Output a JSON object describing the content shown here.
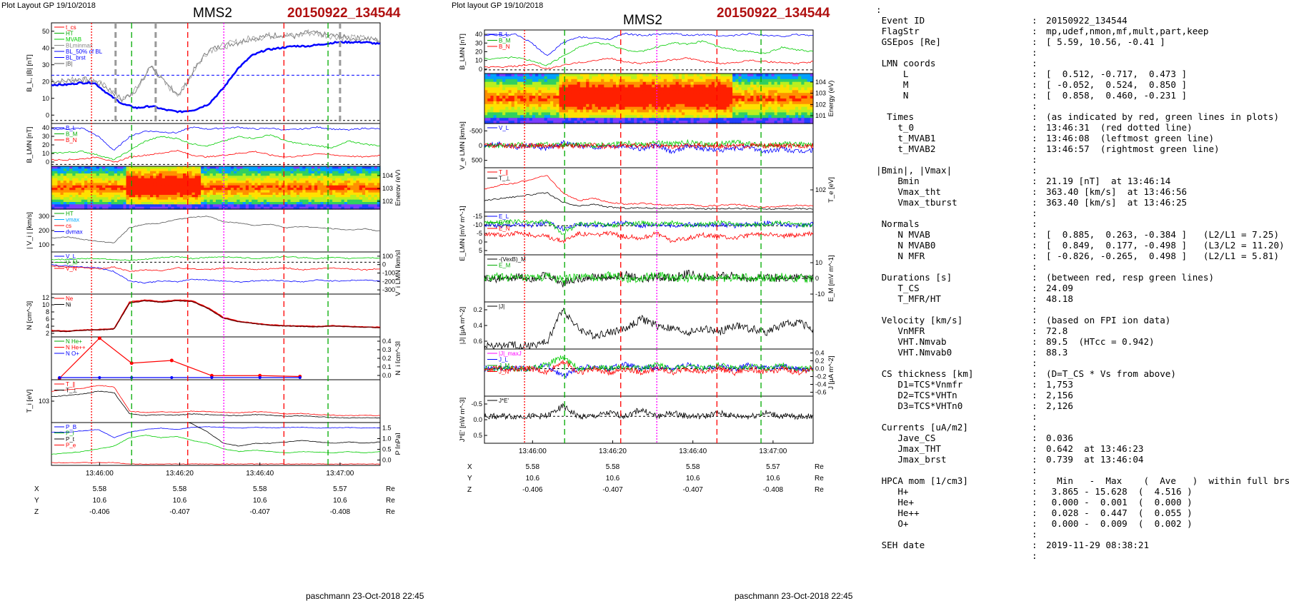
{
  "left_panel": {
    "layout_label": "Plot Layout GP 19/10/2018",
    "spacecraft": "MMS2",
    "event": "20150922_134544",
    "footer": "paschmann 23-Oct-2018 22:45",
    "time_ticks": [
      "13:46:00",
      "13:46:20",
      "13:46:40",
      "13:47:00"
    ],
    "pos_rows": [
      {
        "label": "X",
        "values": [
          "5.58",
          "5.58",
          "5.58",
          "5.57"
        ],
        "unit": "Re"
      },
      {
        "label": "Y",
        "values": [
          "10.6",
          "10.6",
          "10.6",
          "10.6"
        ],
        "unit": "Re"
      },
      {
        "label": "Z",
        "values": [
          "-0.406",
          "-0.407",
          "-0.407",
          "-0.408"
        ],
        "unit": "Re"
      }
    ],
    "panels": [
      {
        "id": "bl",
        "ylabel": "B_L, |B| [nT]",
        "yticks": [
          "0",
          "10",
          "20",
          "30",
          "40",
          "50"
        ],
        "side": "left",
        "legend": [
          {
            "t": "t_cs",
            "c": "#ff0000"
          },
          {
            "t": "HT",
            "c": "#00aa00"
          },
          {
            "t": "MVAB",
            "c": "#00cc00"
          },
          {
            "t": "BLminmax",
            "c": "#888888"
          },
          {
            "t": "BL_50% of BL",
            "c": "#0000ff"
          },
          {
            "t": "BL_brst",
            "c": "#0000ff"
          },
          {
            "t": "|B|",
            "c": "#555555"
          }
        ]
      },
      {
        "id": "blmn",
        "ylabel": "B_LMN [nT]",
        "yticks": [
          "0",
          "10",
          "20",
          "30",
          "40"
        ],
        "side": "left",
        "legend": [
          {
            "t": "B_L",
            "c": "#0000ff"
          },
          {
            "t": "B_M",
            "c": "#00aa00"
          },
          {
            "t": "B_N",
            "c": "#ff0000"
          }
        ]
      },
      {
        "id": "spec_i",
        "ylabel": "Energy (eV)",
        "yticks": [
          "10^4",
          "10^3",
          "10^2"
        ],
        "side": "right",
        "legend": []
      },
      {
        "id": "vi",
        "ylabel": "| V_i | [km/s]",
        "yticks": [
          "100",
          "200",
          "300"
        ],
        "side": "left",
        "legend": [
          {
            "t": "HT",
            "c": "#00aa00"
          },
          {
            "t": "vmax",
            "c": "#00aaff"
          },
          {
            "t": "cs",
            "c": "#ff0000"
          },
          {
            "t": "dvmax",
            "c": "#0000ff"
          }
        ]
      },
      {
        "id": "vilmn",
        "ylabel": "V_i LMN [km/s]",
        "yticks": [
          "100",
          "0",
          "-100",
          "-200",
          "-300"
        ],
        "side": "right",
        "legend": [
          {
            "t": "V_L",
            "c": "#0000ff"
          },
          {
            "t": "V_M",
            "c": "#00aa00"
          },
          {
            "t": "V_N",
            "c": "#ff0000"
          }
        ]
      },
      {
        "id": "n",
        "ylabel": "N [cm^-3]",
        "yticks": [
          "2",
          "4",
          "6",
          "8",
          "10",
          "12"
        ],
        "side": "left",
        "legend": [
          {
            "t": "Ne",
            "c": "#ff0000"
          },
          {
            "t": "Ni",
            "c": "#000000"
          }
        ]
      },
      {
        "id": "nhpca",
        "ylabel": "N_i [cm^-3]",
        "yticks": [
          "0.0",
          "0.1",
          "0.2",
          "0.3",
          "0.4"
        ],
        "side": "right",
        "legend": [
          {
            "t": "N He+",
            "c": "#00aa00"
          },
          {
            "t": "N He++",
            "c": "#ff0000"
          },
          {
            "t": "N O+",
            "c": "#0000ff"
          }
        ]
      },
      {
        "id": "ti",
        "ylabel": "T_i [eV]",
        "yticks": [
          "10^3"
        ],
        "side": "left",
        "legend": [
          {
            "t": "T_∥",
            "c": "#ff0000"
          },
          {
            "t": "T_⊥",
            "c": "#000000"
          }
        ]
      },
      {
        "id": "p",
        "ylabel": "P [nPa]",
        "yticks": [
          "0.0",
          "0.5",
          "1.0",
          "1.5"
        ],
        "side": "right",
        "legend": [
          {
            "t": "P_B",
            "c": "#0000ff"
          },
          {
            "t": "P_i",
            "c": "#00aa00"
          },
          {
            "t": "P_t",
            "c": "#000000"
          },
          {
            "t": "P_e",
            "c": "#ff0000"
          }
        ]
      }
    ]
  },
  "middle_panel": {
    "layout_label": "Plot layout GP 19/10/2018",
    "spacecraft": "MMS2",
    "event": "20150922_134544",
    "footer": "paschmann 23-Oct-2018 22:45",
    "time_ticks": [
      "13:46:00",
      "13:46:20",
      "13:46:40",
      "13:47:00"
    ],
    "pos_rows": [
      {
        "label": "X",
        "values": [
          "5.58",
          "5.58",
          "5.58",
          "5.57"
        ],
        "unit": "Re"
      },
      {
        "label": "Y",
        "values": [
          "10.6",
          "10.6",
          "10.6",
          "10.6"
        ],
        "unit": "Re"
      },
      {
        "label": "Z",
        "values": [
          "-0.406",
          "-0.407",
          "-0.407",
          "-0.408"
        ],
        "unit": "Re"
      }
    ],
    "panels": [
      {
        "id": "blmn2",
        "ylabel": "B_LMN [nT]",
        "yticks": [
          "0",
          "10",
          "20",
          "30",
          "40"
        ],
        "side": "left",
        "legend": [
          {
            "t": "B_L",
            "c": "#0000ff"
          },
          {
            "t": "B_M",
            "c": "#00aa00"
          },
          {
            "t": "B_N",
            "c": "#ff0000"
          }
        ]
      },
      {
        "id": "spec_e",
        "ylabel": "Energy (eV)",
        "yticks": [
          "10^4",
          "10^3",
          "10^2",
          "10^1"
        ],
        "side": "right",
        "legend": []
      },
      {
        "id": "ve",
        "ylabel": "V_e LMN [km/s]",
        "yticks": [
          "500",
          "0",
          "-500"
        ],
        "side": "left",
        "legend": [
          {
            "t": "V_L",
            "c": "#0000ff"
          }
        ]
      },
      {
        "id": "te",
        "ylabel": "T_e [eV]",
        "yticks": [
          "10^2"
        ],
        "side": "right",
        "legend": [
          {
            "t": "T_∥",
            "c": "#ff0000"
          },
          {
            "t": "T_⊥",
            "c": "#000000"
          }
        ]
      },
      {
        "id": "e",
        "ylabel": "E_LMN [mV m^-1]",
        "yticks": [
          "5",
          "0",
          "-5",
          "-10",
          "-15"
        ],
        "side": "left",
        "legend": [
          {
            "t": "E_L",
            "c": "#0000ff"
          },
          {
            "t": "E_M",
            "c": "#00aa00"
          },
          {
            "t": "E_N",
            "c": "#ff0000"
          }
        ]
      },
      {
        "id": "em",
        "ylabel": "E_M [mV m^-1]",
        "yticks": [
          "10",
          "0",
          "-10"
        ],
        "side": "right",
        "legend": [
          {
            "t": "-(VexB)_M",
            "c": "#000000"
          },
          {
            "t": "E_M",
            "c": "#00aa00"
          }
        ]
      },
      {
        "id": "j",
        "ylabel": "|J| [µA m^-2]",
        "yticks": [
          "0.6",
          "0.4",
          "0.2"
        ],
        "side": "left",
        "legend": [
          {
            "t": "|J|",
            "c": "#000000"
          }
        ]
      },
      {
        "id": "jlmn",
        "ylabel": "J [µA m^-2]",
        "yticks": [
          "0.4",
          "0.2",
          "0.0",
          "-0.2",
          "-0.4",
          "-0.6"
        ],
        "side": "right",
        "legend": [
          {
            "t": "|J|_maxJ",
            "c": "#ff00ff"
          },
          {
            "t": "J_L",
            "c": "#0000ff"
          },
          {
            "t": "J_M",
            "c": "#00aa00"
          },
          {
            "t": "J_N",
            "c": "#ff0000"
          }
        ]
      },
      {
        "id": "jdote",
        "ylabel": "J*E' [nW m^-3]",
        "yticks": [
          "0.5",
          "0.0",
          "-0.5"
        ],
        "side": "left",
        "legend": [
          {
            "t": "J*E'",
            "c": "#000000"
          }
        ]
      }
    ]
  },
  "info": {
    "rows": [
      {
        "lbl": ":",
        "val": ""
      },
      {
        "lbl": " Event ID",
        "val": "20150922_134544"
      },
      {
        "lbl": " FlagStr",
        "val": "mp,udef,nmon,mf,mult,part,keep"
      },
      {
        "lbl": " GSEpos [Re]",
        "val": "[ 5.59, 10.56, -0.41 ]"
      },
      {
        "lbl": "",
        "val": ""
      },
      {
        "lbl": " LMN coords",
        "val": ""
      },
      {
        "lbl": "     L",
        "val": "[  0.512, -0.717,  0.473 ]"
      },
      {
        "lbl": "     M",
        "val": "[ -0.052,  0.524,  0.850 ]"
      },
      {
        "lbl": "     N",
        "val": "[  0.858,  0.460, -0.231 ]"
      },
      {
        "lbl": "",
        "val": ""
      },
      {
        "lbl": "  Times",
        "val": "(as indicated by red, green lines in plots)"
      },
      {
        "lbl": "    t_0",
        "val": "13:46:31  (red dotted line)"
      },
      {
        "lbl": "    t_MVAB1",
        "val": "13:46:08  (leftmost green line)"
      },
      {
        "lbl": "    t_MVAB2",
        "val": "13:46:57  (rightmost green line)"
      },
      {
        "lbl": "",
        "val": ""
      },
      {
        "lbl": "|Bmin|, |Vmax|",
        "val": ""
      },
      {
        "lbl": "    Bmin",
        "val": "21.19 [nT]  at 13:46:14"
      },
      {
        "lbl": "    Vmax_tht",
        "val": "363.40 [km/s]  at 13:46:56"
      },
      {
        "lbl": "    Vmax_tburst",
        "val": "363.40 [km/s]  at 13:46:25"
      },
      {
        "lbl": "",
        "val": ""
      },
      {
        "lbl": " Normals",
        "val": ""
      },
      {
        "lbl": "    N MVAB",
        "val": "[  0.885,  0.263, -0.384 ]   (L2/L1 = 7.25)"
      },
      {
        "lbl": "    N MVAB0",
        "val": "[  0.849,  0.177, -0.498 ]   (L3/L2 = 11.20)"
      },
      {
        "lbl": "    N MFR",
        "val": "[ -0.826, -0.265,  0.498 ]   (L2/L1 = 5.81)"
      },
      {
        "lbl": "",
        "val": ""
      },
      {
        "lbl": " Durations [s]",
        "val": "(between red, resp green lines)"
      },
      {
        "lbl": "    T_CS",
        "val": "24.09"
      },
      {
        "lbl": "    T_MFR/HT",
        "val": "48.18"
      },
      {
        "lbl": "",
        "val": ""
      },
      {
        "lbl": " Velocity [km/s]",
        "val": "(based on FPI ion data)"
      },
      {
        "lbl": "    VnMFR",
        "val": "72.8"
      },
      {
        "lbl": "    VHT.Nmvab",
        "val": "89.5  (HTcc = 0.942)"
      },
      {
        "lbl": "    VHT.Nmvab0",
        "val": "88.3"
      },
      {
        "lbl": "",
        "val": ""
      },
      {
        "lbl": " CS thickness [km]",
        "val": "(D=T_CS * Vs from above)"
      },
      {
        "lbl": "    D1=TCS*Vnmfr",
        "val": "1,753"
      },
      {
        "lbl": "    D2=TCS*VHTn",
        "val": "2,156"
      },
      {
        "lbl": "    D3=TCS*VHTn0",
        "val": "2,126"
      },
      {
        "lbl": "",
        "val": ""
      },
      {
        "lbl": " Currents [uA/m2]",
        "val": ""
      },
      {
        "lbl": "    Jave_CS",
        "val": "0.036"
      },
      {
        "lbl": "    Jmax_THT",
        "val": "0.642  at 13:46:23"
      },
      {
        "lbl": "    Jmax_brst",
        "val": "0.739  at 13:46:04"
      },
      {
        "lbl": "",
        "val": ""
      },
      {
        "lbl": " HPCA mom [1/cm3]",
        "val": "  Min   -  Max    (  Ave   )  within full brst int"
      },
      {
        "lbl": "    H+",
        "val": " 3.865 - 15.628  (  4.516 )"
      },
      {
        "lbl": "    He+",
        "val": " 0.000 -  0.001  (  0.000 )"
      },
      {
        "lbl": "    He++",
        "val": " 0.028 -  0.447  (  0.055 )"
      },
      {
        "lbl": "    O+",
        "val": " 0.000 -  0.009  (  0.002 )"
      },
      {
        "lbl": "",
        "val": ""
      },
      {
        "lbl": " SEH date",
        "val": "2019-11-29 08:38:21"
      },
      {
        "lbl": "",
        "val": ""
      }
    ]
  },
  "chart_data": [
    {
      "type": "line",
      "title": "MMS2 20150922_134544",
      "xlabel": "",
      "x_ticks": [
        "13:46:00",
        "13:46:20",
        "13:46:40",
        "13:47:00"
      ],
      "x_range_s": [
        -12,
        70
      ],
      "marker_lines": [
        {
          "name": "t_cs",
          "time_s": -2,
          "color": "#ff0000",
          "style": "dotted"
        },
        {
          "name": "HT",
          "time_s": 8,
          "color": "#00aa00",
          "style": "dashed"
        },
        {
          "name": "t_cs",
          "time_s": 22,
          "color": "#ff0000",
          "style": "dashed"
        },
        {
          "name": "t_0",
          "time_s": 31,
          "color": "#ff00ff",
          "style": "dotted"
        },
        {
          "name": "t_cs",
          "time_s": 46,
          "color": "#ff0000",
          "style": "dashed"
        },
        {
          "name": "HT",
          "time_s": 57,
          "color": "#00aa00",
          "style": "dashed"
        }
      ],
      "series": [
        {
          "name": "BL_brst",
          "panel": "bl",
          "color": "#0000ff",
          "values": [
            20,
            20,
            21,
            21,
            15,
            10,
            8,
            9,
            7,
            6,
            7,
            10,
            18,
            28,
            35,
            38,
            39,
            40,
            40,
            41,
            42,
            42,
            42,
            41
          ]
        },
        {
          "name": "|B|",
          "panel": "bl",
          "color": "#666666",
          "values": [
            22,
            22,
            23,
            22,
            18,
            12,
            18,
            30,
            20,
            15,
            28,
            38,
            40,
            42,
            44,
            45,
            46,
            45,
            47,
            46,
            45,
            44,
            44,
            43
          ]
        },
        {
          "name": "Ni",
          "panel": "n",
          "color": "#6b0000",
          "values": [
            3,
            3.2,
            3,
            3.3,
            3.5,
            10.5,
            11,
            10.5,
            11,
            10.8,
            9,
            6.5,
            5.5,
            5,
            4.6,
            4.4,
            4.3,
            4.2,
            4.4,
            4.2,
            4.1,
            4.0,
            4.3,
            4.1
          ]
        },
        {
          "name": "N He++",
          "panel": "nhpca",
          "color": "#ff0000",
          "values": [
            0.0,
            0.45,
            0.17,
            0.2,
            0.03,
            0.03,
            0.02
          ]
        },
        {
          "name": "|Vi|",
          "panel": "vi",
          "color": "#555555",
          "values": [
            150,
            140,
            120,
            100,
            110,
            220,
            260,
            280,
            300,
            330,
            320,
            270,
            260,
            240,
            250,
            230,
            230,
            240,
            220,
            210,
            220,
            200,
            210,
            220
          ]
        }
      ]
    },
    {
      "type": "line",
      "title": "MMS2 20150922_134544",
      "x_ticks": [
        "13:46:00",
        "13:46:20",
        "13:46:40",
        "13:47:00"
      ],
      "series": [
        {
          "name": "|J|",
          "panel": "j",
          "color": "#000000",
          "values": [
            0.05,
            0.05,
            0.06,
            0.05,
            0.1,
            0.6,
            0.3,
            0.2,
            0.25,
            0.3,
            0.45,
            0.35,
            0.3,
            0.25,
            0.3,
            0.25,
            0.35,
            0.3,
            0.25,
            0.35,
            0.4,
            0.3,
            0.2,
            0.15
          ]
        },
        {
          "name": "T_∥",
          "panel": "te",
          "color": "#ff0000",
          "values": [
            150,
            170,
            180,
            200,
            220,
            130,
            90,
            100,
            80,
            70,
            75,
            70,
            65,
            70,
            60,
            65,
            70,
            60,
            55,
            60,
            65,
            60,
            55,
            60
          ]
        },
        {
          "name": "T_⊥",
          "panel": "te",
          "color": "#000000",
          "values": [
            90,
            100,
            110,
            120,
            130,
            80,
            60,
            70,
            55,
            50,
            52,
            50,
            48,
            50,
            46,
            48,
            50,
            46,
            45,
            46,
            48,
            46,
            45,
            46
          ]
        }
      ]
    }
  ]
}
